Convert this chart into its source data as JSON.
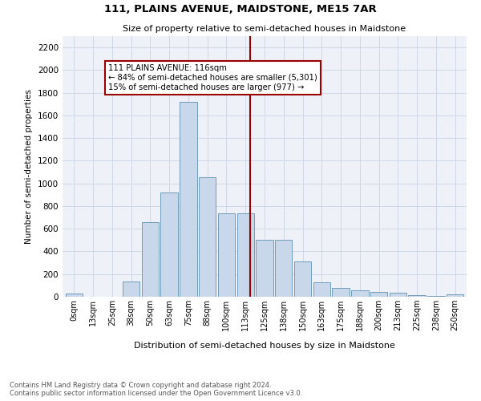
{
  "title": "111, PLAINS AVENUE, MAIDSTONE, ME15 7AR",
  "subtitle": "Size of property relative to semi-detached houses in Maidstone",
  "xlabel": "Distribution of semi-detached houses by size in Maidstone",
  "ylabel": "Number of semi-detached properties",
  "footer": "Contains HM Land Registry data © Crown copyright and database right 2024.\nContains public sector information licensed under the Open Government Licence v3.0.",
  "bar_color": "#c8d8ea",
  "bar_edge_color": "#6090b0",
  "categories": [
    "0sqm",
    "13sqm",
    "25sqm",
    "38sqm",
    "50sqm",
    "63sqm",
    "75sqm",
    "88sqm",
    "100sqm",
    "113sqm",
    "125sqm",
    "138sqm",
    "150sqm",
    "163sqm",
    "175sqm",
    "188sqm",
    "200sqm",
    "213sqm",
    "225sqm",
    "238sqm",
    "250sqm"
  ],
  "values": [
    25,
    0,
    0,
    135,
    660,
    920,
    1720,
    1055,
    735,
    735,
    500,
    500,
    310,
    130,
    75,
    55,
    45,
    35,
    15,
    10,
    20
  ],
  "ylim": [
    0,
    2300
  ],
  "yticks": [
    0,
    200,
    400,
    600,
    800,
    1000,
    1200,
    1400,
    1600,
    1800,
    2000,
    2200
  ],
  "annotation_title": "111 PLAINS AVENUE: 116sqm",
  "annotation_line1": "← 84% of semi-detached houses are smaller (5,301)",
  "annotation_line2": "15% of semi-detached houses are larger (977) →",
  "grid_color": "#d0d8e8",
  "background_color": "#eef2f8"
}
